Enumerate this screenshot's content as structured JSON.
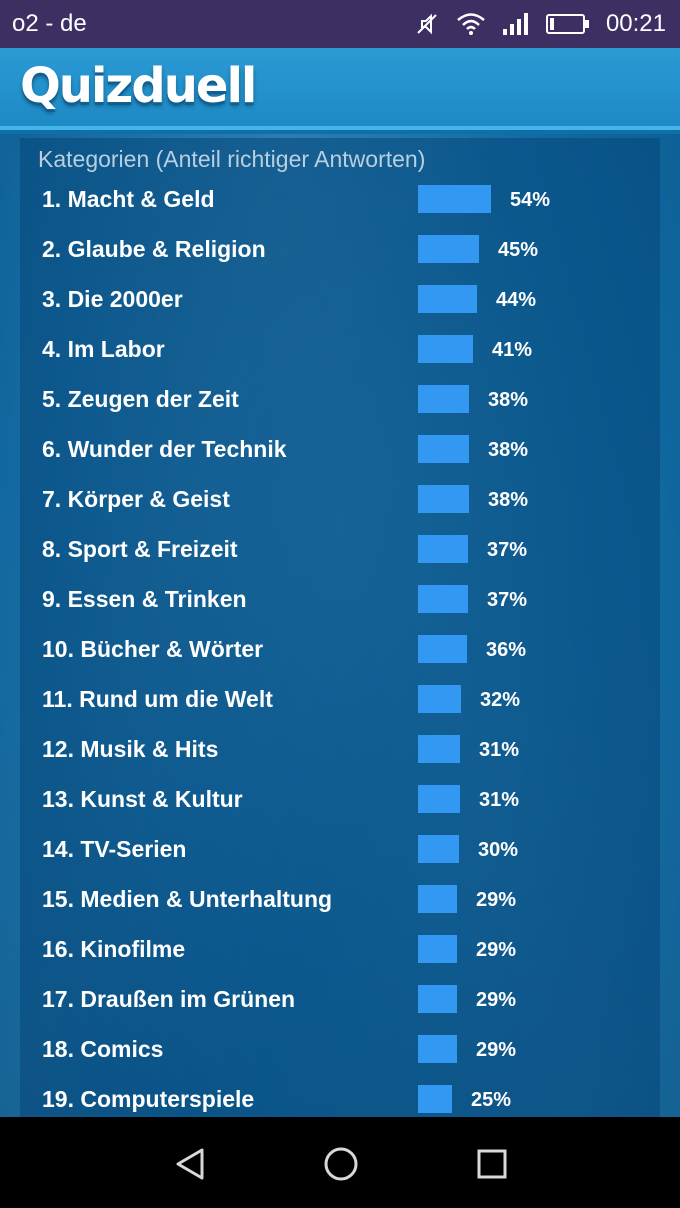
{
  "status_bar": {
    "carrier": "o2 - de",
    "time": "00:21",
    "icons": [
      "mute-icon",
      "wifi-icon",
      "signal-icon",
      "battery-icon"
    ]
  },
  "header": {
    "app_title": "Quizduell"
  },
  "panel": {
    "title": "Kategorien (Anteil richtiger Antworten)",
    "items": [
      {
        "label": "1. Macht & Geld",
        "percent_label": "54%",
        "value": 54
      },
      {
        "label": "2. Glaube & Religion",
        "percent_label": "45%",
        "value": 45
      },
      {
        "label": "3. Die 2000er",
        "percent_label": "44%",
        "value": 44
      },
      {
        "label": "4. Im Labor",
        "percent_label": "41%",
        "value": 41
      },
      {
        "label": "5. Zeugen der Zeit",
        "percent_label": "38%",
        "value": 38
      },
      {
        "label": "6. Wunder der Technik",
        "percent_label": "38%",
        "value": 38
      },
      {
        "label": "7. Körper & Geist",
        "percent_label": "38%",
        "value": 38
      },
      {
        "label": "8. Sport & Freizeit",
        "percent_label": "37%",
        "value": 37
      },
      {
        "label": "9. Essen & Trinken",
        "percent_label": "37%",
        "value": 37
      },
      {
        "label": "10. Bücher & Wörter",
        "percent_label": "36%",
        "value": 36
      },
      {
        "label": "11. Rund um die Welt",
        "percent_label": "32%",
        "value": 32
      },
      {
        "label": "12. Musik & Hits",
        "percent_label": "31%",
        "value": 31
      },
      {
        "label": "13. Kunst & Kultur",
        "percent_label": "31%",
        "value": 31
      },
      {
        "label": "14. TV-Serien",
        "percent_label": "30%",
        "value": 30
      },
      {
        "label": "15. Medien & Unterhaltung",
        "percent_label": "29%",
        "value": 29
      },
      {
        "label": "16. Kinofilme",
        "percent_label": "29%",
        "value": 29
      },
      {
        "label": "17. Draußen im Grünen",
        "percent_label": "29%",
        "value": 29
      },
      {
        "label": "18. Comics",
        "percent_label": "29%",
        "value": 29
      },
      {
        "label": "19. Computerspiele",
        "percent_label": "25%",
        "value": 25
      }
    ]
  },
  "nav_bar": {
    "buttons": [
      "back-icon",
      "home-icon",
      "recents-icon"
    ]
  },
  "colors": {
    "bar": "#3398f2",
    "status_bar_bg": "#3e2f63",
    "header_bg": "#2b9ad3",
    "nav_bg": "#000000"
  }
}
